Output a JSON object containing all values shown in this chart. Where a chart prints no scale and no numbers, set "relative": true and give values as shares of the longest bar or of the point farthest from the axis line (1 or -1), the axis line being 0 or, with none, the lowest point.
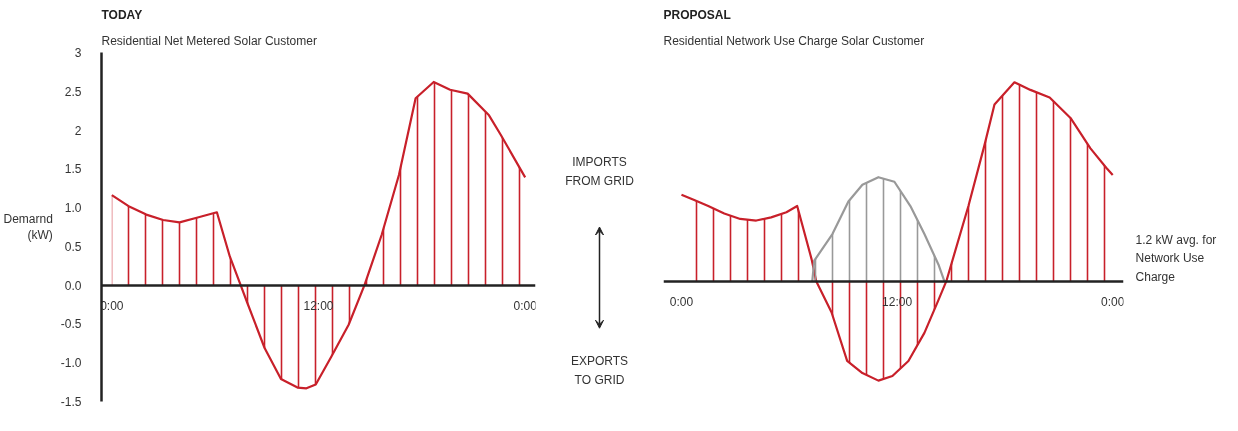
{
  "chart_data": [
    {
      "type": "area",
      "title": "TODAY",
      "subtitle": "Residential Net Metered Solar Customer",
      "ylabel": "Demarnd (kW)",
      "xlim": [
        -0.6,
        24.6
      ],
      "ylim": [
        -1.5,
        3
      ],
      "xticks": [
        {
          "value": 0,
          "label": "0:00"
        },
        {
          "value": 12,
          "label": "12:00"
        },
        {
          "value": 24,
          "label": "0:00"
        }
      ],
      "yticks": [
        {
          "value": -1.5,
          "label": "-1.5"
        },
        {
          "value": -1,
          "label": "-1.0"
        },
        {
          "value": -0.5,
          "label": "-0.5"
        },
        {
          "value": 0,
          "label": "0.0"
        },
        {
          "value": 0.5,
          "label": "0.5"
        },
        {
          "value": 1,
          "label": "1.0"
        },
        {
          "value": 1.5,
          "label": "1.5"
        },
        {
          "value": 2,
          "label": "2"
        },
        {
          "value": 2.5,
          "label": "2.5"
        },
        {
          "value": 3,
          "label": "3"
        }
      ],
      "grid": false,
      "series": [
        {
          "color": "#c8202a",
          "x": [
            0,
            1.04,
            2.0,
            2.98,
            3.93,
            4.93,
            6.1,
            6.85,
            7.48,
            7.87,
            8.87,
            9.82,
            10.78,
            11.3,
            11.84,
            12.75,
            13.75,
            14.67,
            15.67,
            16.67,
            17.64,
            18.69,
            19.64,
            20.66,
            21.9,
            22.58,
            24.0
          ],
          "values": [
            1.16,
            1.01,
            0.91,
            0.84,
            0.81,
            0.87,
            0.94,
            0.37,
            0,
            -0.23,
            -0.81,
            -1.21,
            -1.32,
            -1.33,
            -1.28,
            -0.92,
            -0.51,
            0,
            0.65,
            1.42,
            2.41,
            2.62,
            2.52,
            2.47,
            2.19,
            1.94,
            1.39
          ]
        }
      ]
    },
    {
      "type": "area",
      "title": "PROPOSAL",
      "subtitle": "Residential Network Use Charge Solar Customer",
      "xlim": [
        -1,
        24.6
      ],
      "relative": true,
      "xticks": [
        {
          "value": 0,
          "label": "0:00"
        },
        {
          "value": 12,
          "label": "12:00"
        },
        {
          "value": 24,
          "label": "0:00"
        }
      ],
      "tick_labels": "x",
      "grid": false,
      "annotations": [
        "IMPORTS FROM GRID",
        "EXPORTS TO GRID",
        "1.2 kW avg. for Network Use Charge"
      ],
      "series": [
        {
          "color": "#c8202a",
          "x": [
            0,
            0.71,
            1.49,
            2.38,
            3.27,
            4.16,
            4.99,
            5.84,
            6.44,
            7.24,
            7.5,
            8.35,
            9.22,
            10.07,
            10.96,
            11.74,
            12.63,
            13.52,
            14.3,
            14.74,
            15.97,
            16.86,
            17.42,
            18.53,
            19.42,
            20.49,
            21.65,
            22.76,
            23.65,
            24
          ],
          "values": [
            0.435,
            0.408,
            0.378,
            0.34,
            0.313,
            0.305,
            0.321,
            0.347,
            0.378,
            0.111,
            0,
            -0.156,
            -0.401,
            -0.462,
            -0.5,
            -0.477,
            -0.401,
            -0.26,
            -0.095,
            0,
            0.378,
            0.683,
            0.889,
            1,
            0.962,
            0.924,
            0.821,
            0.668,
            0.569,
            0.534
          ]
        },
        {
          "color": "#999999",
          "x": [
            7.28,
            7.39,
            8.4,
            9.29,
            10.07,
            10.96,
            11.85,
            12.74,
            13.52,
            14.3,
            14.63
          ],
          "values": [
            0,
            0.103,
            0.237,
            0.401,
            0.485,
            0.523,
            0.5,
            0.378,
            0.237,
            0.084,
            0
          ]
        }
      ]
    }
  ]
}
